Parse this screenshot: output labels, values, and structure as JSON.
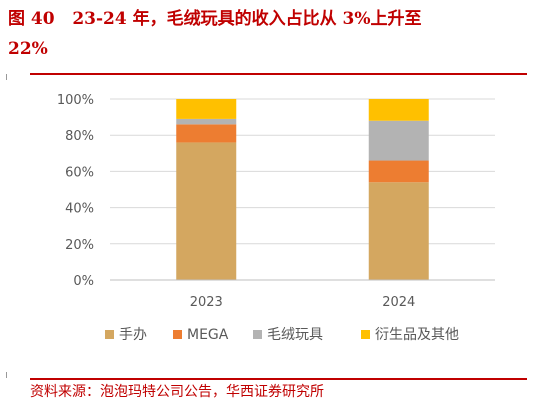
{
  "header": {
    "figure_no": "图 40",
    "title_line1": "23-24 年，毛绒玩具的收入占比从 3%上升至",
    "title_line2": "22%"
  },
  "source": "资料来源：泡泡玛特公司公告，华西证券研究所",
  "colors": {
    "accent": "#c00000",
    "grid": "#d9d9d9",
    "axis": "#bfbfbf",
    "text": "#595959"
  },
  "chart_data": {
    "type": "bar",
    "stacked": true,
    "categories": [
      "2023",
      "2024"
    ],
    "series": [
      {
        "name": "手办",
        "color": "#d4a760",
        "values": [
          76,
          54
        ]
      },
      {
        "name": "MEGA",
        "color": "#ed7d31",
        "values": [
          10,
          12
        ]
      },
      {
        "name": "毛绒玩具",
        "color": "#b3b3b3",
        "values": [
          3,
          22
        ]
      },
      {
        "name": "衍生品及其他",
        "color": "#ffc000",
        "values": [
          11,
          12
        ]
      }
    ],
    "ylim": [
      0,
      100
    ],
    "yticks": [
      "0%",
      "20%",
      "40%",
      "60%",
      "80%",
      "100%"
    ],
    "ytick_values": [
      0,
      20,
      40,
      60,
      80,
      100
    ],
    "grid": true,
    "legend_position": "bottom"
  }
}
